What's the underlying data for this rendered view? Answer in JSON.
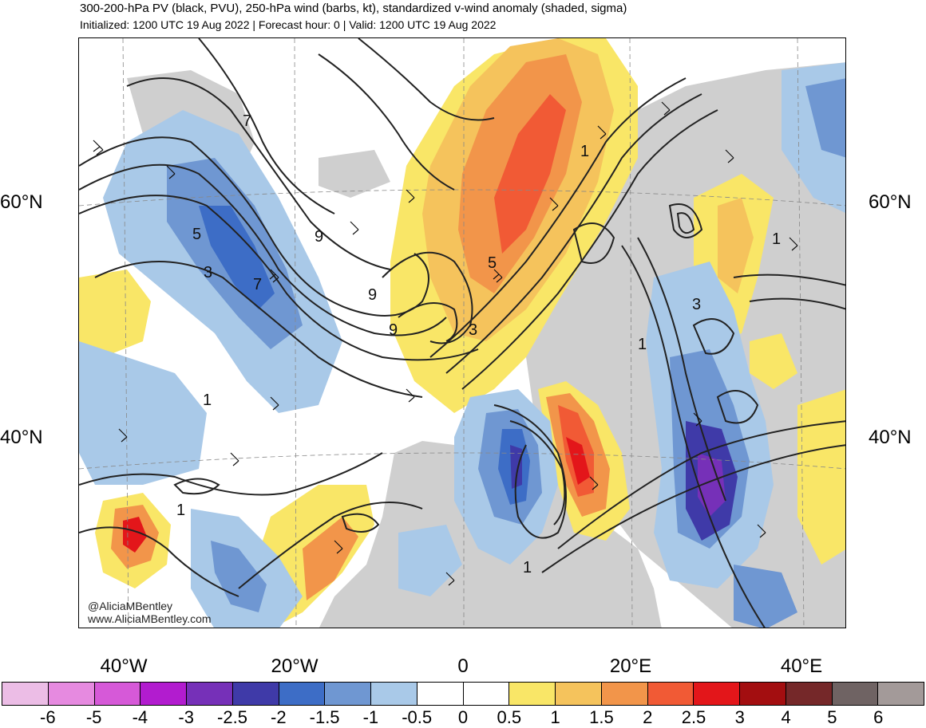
{
  "header": {
    "title": "300-200-hPa PV (black, PVU), 250-hPa wind (barbs, kt), standardized v-wind anomaly (shaded, sigma)",
    "subtitle": "Initialized: 1200 UTC 19 Aug 2022 | Forecast hour: 0 | Valid: 1200 UTC 19 Aug 2022"
  },
  "axes": {
    "lat_labels": [
      "60°N",
      "40°N"
    ],
    "lon_labels": [
      "40°W",
      "20°W",
      "0",
      "20°E",
      "40°E"
    ]
  },
  "contour_labels": [
    "7",
    "5",
    "3",
    "7",
    "9",
    "9",
    "9",
    "1",
    "5",
    "3",
    "1",
    "1",
    "3",
    "1",
    "1",
    "1"
  ],
  "watermark": {
    "handle": "@AliciaMBentley",
    "url": "www.AliciaMBentley.com"
  },
  "colorbar": {
    "colors": [
      "#ecbde6",
      "#e68ae0",
      "#d659d8",
      "#b21ccf",
      "#7630b8",
      "#3f3aa8",
      "#3d6dc6",
      "#6f97d2",
      "#a9c9e8",
      "#ffffff",
      "#ffffff",
      "#f9e667",
      "#f5c35c",
      "#f2954a",
      "#f15a35",
      "#e3161a",
      "#a30e10",
      "#752829",
      "#6f6363",
      "#a39a99"
    ],
    "labels": [
      "-6",
      "-5",
      "-4",
      "-3",
      "-2.5",
      "-2",
      "-1.5",
      "-1",
      "-0.5",
      "0",
      "0.5",
      "1",
      "1.5",
      "2",
      "2.5",
      "3",
      "4",
      "5",
      "6"
    ]
  }
}
